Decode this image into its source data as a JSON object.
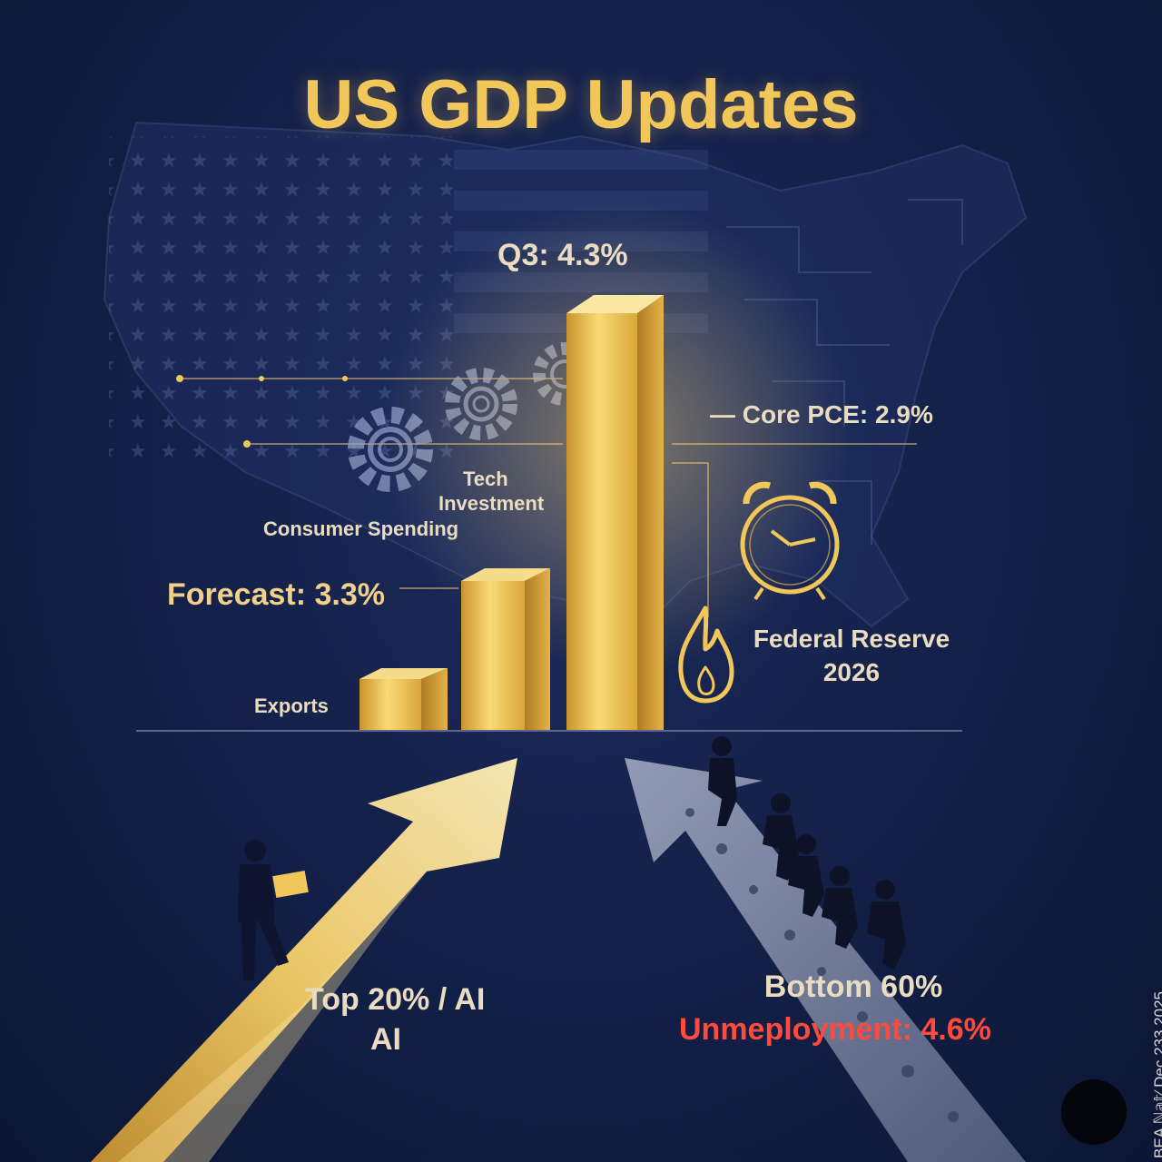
{
  "title": "US GDP Updates",
  "bars": {
    "q3_label": "Q3: 4.3%",
    "forecast_label": "Forecast: 3.3%",
    "exports_label": "Exports"
  },
  "drivers": {
    "tech": "Tech",
    "investment": "Investment",
    "consumer_spending": "Consumer Spending"
  },
  "core_pce": "— Core PCE: 2.9%",
  "federal_reserve": {
    "line1": "Federal Reserve",
    "line2": "2026"
  },
  "top_group": {
    "line1": "Top 20% / AI",
    "line2": "AI"
  },
  "bottom_group": {
    "line1": "Bottom 60%",
    "line2": "Unmeployment: 4.6%"
  },
  "source_note": "BEA ℕ𝕒𝕥⁄  Dec 233,2025",
  "colors": {
    "gold": "#f2c75a",
    "navy": "#14214a",
    "red": "#ff4b3e"
  },
  "icons": [
    "us-map-icon",
    "gear-icon",
    "alarm-clock-icon",
    "fire-icon",
    "person-laptop-icon",
    "person-silhouette-icon"
  ]
}
